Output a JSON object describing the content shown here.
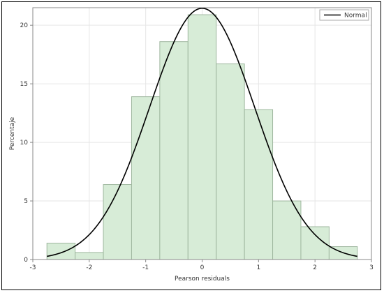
{
  "chart_data": {
    "type": "bar",
    "title": "",
    "xlabel": "Pearson residuals",
    "ylabel": "Percentaje",
    "xlim": [
      -3,
      3
    ],
    "ylim": [
      0,
      21.5
    ],
    "grid": true,
    "legend_position": "top-right",
    "x_ticks": [
      -3,
      -2,
      -1,
      0,
      1,
      2,
      3
    ],
    "y_ticks": [
      0,
      5,
      10,
      15,
      20
    ],
    "histogram": {
      "bin_width": 0.5,
      "bin_starts": [
        -2.75,
        -2.25,
        -1.75,
        -1.25,
        -0.75,
        -0.25,
        0.25,
        0.75,
        1.25,
        1.75,
        2.25
      ],
      "values": [
        1.4,
        0.6,
        6.4,
        13.9,
        18.6,
        20.9,
        16.7,
        12.8,
        5.0,
        2.8,
        1.1
      ],
      "fill": "#d7ecd7",
      "stroke": "#9fb79f"
    },
    "series": [
      {
        "name": "Normal",
        "type": "line",
        "mean": 0.0,
        "sd": 0.93,
        "scale_percent": 50,
        "color": "#000000"
      }
    ]
  }
}
